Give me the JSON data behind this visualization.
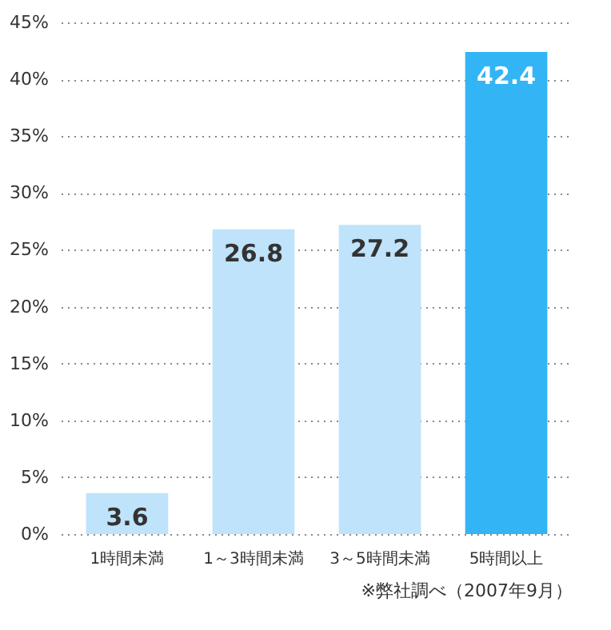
{
  "chart_data": {
    "type": "bar",
    "categories": [
      "1時間未満",
      "1～3時間未満",
      "3～5時間未満",
      "5時間以上"
    ],
    "values": [
      3.6,
      26.8,
      27.2,
      42.4
    ],
    "colors": [
      "#bfe3fb",
      "#bfe3fb",
      "#bfe3fb",
      "#33b5f5"
    ],
    "ylim": [
      0,
      45
    ],
    "yticks": [
      {
        "value": 0,
        "label": "0%"
      },
      {
        "value": 5,
        "label": "5%"
      },
      {
        "value": 10,
        "label": "10%"
      },
      {
        "value": 15,
        "label": "15%"
      },
      {
        "value": 20,
        "label": "20%"
      },
      {
        "value": 25,
        "label": "25%"
      },
      {
        "value": 30,
        "label": "30%"
      },
      {
        "value": 35,
        "label": "35%"
      },
      {
        "value": 40,
        "label": "40%"
      },
      {
        "value": 45,
        "label": "45%"
      }
    ],
    "grid": "y",
    "data_labels": true,
    "annotations": [
      "※弊社調べ（2007年9月）"
    ]
  }
}
